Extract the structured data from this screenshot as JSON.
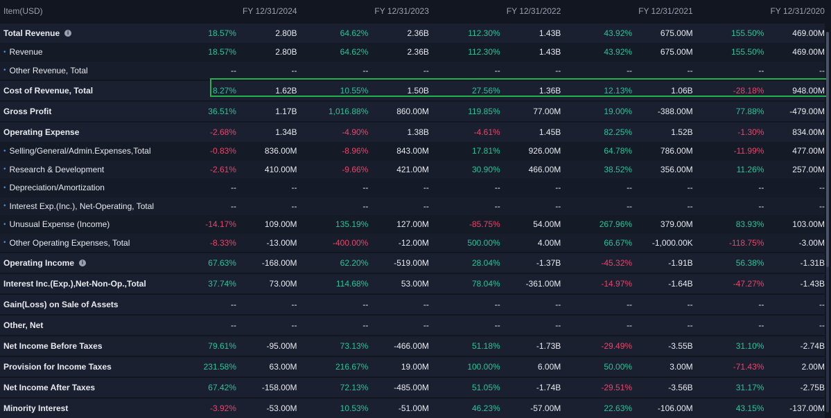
{
  "header": {
    "item_label": "Item(USD)",
    "years": [
      "FY 12/31/2024",
      "FY 12/31/2023",
      "FY 12/31/2022",
      "FY 12/31/2021",
      "FY 12/31/2020"
    ]
  },
  "rows": [
    {
      "name": "Total Revenue",
      "type": "main",
      "info": true,
      "cells": [
        [
          "18.57%",
          "pos"
        ],
        [
          "2.80B"
        ],
        [
          "64.62%",
          "pos"
        ],
        [
          "2.36B"
        ],
        [
          "112.30%",
          "pos"
        ],
        [
          "1.43B"
        ],
        [
          "43.92%",
          "pos"
        ],
        [
          "675.00M"
        ],
        [
          "155.50%",
          "pos"
        ],
        [
          "469.00M"
        ]
      ]
    },
    {
      "name": "Revenue",
      "type": "sub",
      "cells": [
        [
          "18.57%",
          "pos"
        ],
        [
          "2.80B"
        ],
        [
          "64.62%",
          "pos"
        ],
        [
          "2.36B"
        ],
        [
          "112.30%",
          "pos"
        ],
        [
          "1.43B"
        ],
        [
          "43.92%",
          "pos"
        ],
        [
          "675.00M"
        ],
        [
          "155.50%",
          "pos"
        ],
        [
          "469.00M"
        ]
      ]
    },
    {
      "name": "Other Revenue, Total",
      "type": "sub",
      "cells": [
        [
          "--"
        ],
        [
          "--"
        ],
        [
          "--"
        ],
        [
          "--"
        ],
        [
          "--"
        ],
        [
          "--"
        ],
        [
          "--"
        ],
        [
          "--"
        ],
        [
          "--"
        ],
        [
          "--"
        ]
      ]
    },
    {
      "name": "Cost of Revenue, Total",
      "type": "main",
      "highlight": true,
      "cells": [
        [
          "8.27%",
          "pos"
        ],
        [
          "1.62B"
        ],
        [
          "10.55%",
          "pos"
        ],
        [
          "1.50B"
        ],
        [
          "27.56%",
          "pos"
        ],
        [
          "1.36B"
        ],
        [
          "12.13%",
          "pos"
        ],
        [
          "1.06B"
        ],
        [
          "-28.18%",
          "neg"
        ],
        [
          "948.00M"
        ]
      ]
    },
    {
      "name": "Gross Profit",
      "type": "main",
      "cells": [
        [
          "36.51%",
          "pos"
        ],
        [
          "1.17B"
        ],
        [
          "1,016.88%",
          "pos"
        ],
        [
          "860.00M"
        ],
        [
          "119.85%",
          "pos"
        ],
        [
          "77.00M"
        ],
        [
          "19.00%",
          "pos"
        ],
        [
          "-388.00M"
        ],
        [
          "77.88%",
          "pos"
        ],
        [
          "-479.00M"
        ]
      ]
    },
    {
      "name": "Operating Expense",
      "type": "main",
      "cells": [
        [
          "-2.68%",
          "neg"
        ],
        [
          "1.34B"
        ],
        [
          "-4.90%",
          "neg"
        ],
        [
          "1.38B"
        ],
        [
          "-4.61%",
          "neg"
        ],
        [
          "1.45B"
        ],
        [
          "82.25%",
          "pos"
        ],
        [
          "1.52B"
        ],
        [
          "-1.30%",
          "neg"
        ],
        [
          "834.00M"
        ]
      ]
    },
    {
      "name": "Selling/General/Admin.Expenses,Total",
      "type": "sub",
      "cells": [
        [
          "-0.83%",
          "neg"
        ],
        [
          "836.00M"
        ],
        [
          "-8.96%",
          "neg"
        ],
        [
          "843.00M"
        ],
        [
          "17.81%",
          "pos"
        ],
        [
          "926.00M"
        ],
        [
          "64.78%",
          "pos"
        ],
        [
          "786.00M"
        ],
        [
          "-11.99%",
          "neg"
        ],
        [
          "477.00M"
        ]
      ]
    },
    {
      "name": "Research & Development",
      "type": "sub",
      "cells": [
        [
          "-2.61%",
          "neg"
        ],
        [
          "410.00M"
        ],
        [
          "-9.66%",
          "neg"
        ],
        [
          "421.00M"
        ],
        [
          "30.90%",
          "pos"
        ],
        [
          "466.00M"
        ],
        [
          "38.52%",
          "pos"
        ],
        [
          "356.00M"
        ],
        [
          "11.26%",
          "pos"
        ],
        [
          "257.00M"
        ]
      ]
    },
    {
      "name": "Depreciation/Amortization",
      "type": "sub",
      "cells": [
        [
          "--"
        ],
        [
          "--"
        ],
        [
          "--"
        ],
        [
          "--"
        ],
        [
          "--"
        ],
        [
          "--"
        ],
        [
          "--"
        ],
        [
          "--"
        ],
        [
          "--"
        ],
        [
          "--"
        ]
      ]
    },
    {
      "name": "Interest Exp.(Inc.), Net-Operating, Total",
      "type": "sub",
      "cells": [
        [
          "--"
        ],
        [
          "--"
        ],
        [
          "--"
        ],
        [
          "--"
        ],
        [
          "--"
        ],
        [
          "--"
        ],
        [
          "--"
        ],
        [
          "--"
        ],
        [
          "--"
        ],
        [
          "--"
        ]
      ]
    },
    {
      "name": "Unusual Expense (Income)",
      "type": "sub",
      "cells": [
        [
          "-14.17%",
          "neg"
        ],
        [
          "109.00M"
        ],
        [
          "135.19%",
          "pos"
        ],
        [
          "127.00M"
        ],
        [
          "-85.75%",
          "neg"
        ],
        [
          "54.00M"
        ],
        [
          "267.96%",
          "pos"
        ],
        [
          "379.00M"
        ],
        [
          "83.93%",
          "pos"
        ],
        [
          "103.00M"
        ]
      ]
    },
    {
      "name": "Other Operating Expenses, Total",
      "type": "sub",
      "cells": [
        [
          "-8.33%",
          "neg"
        ],
        [
          "-13.00M"
        ],
        [
          "-400.00%",
          "neg"
        ],
        [
          "-12.00M"
        ],
        [
          "500.00%",
          "pos"
        ],
        [
          "4.00M"
        ],
        [
          "66.67%",
          "pos"
        ],
        [
          "-1,000.00K"
        ],
        [
          "-118.75%",
          "neg"
        ],
        [
          "-3.00M"
        ]
      ]
    },
    {
      "name": "Operating Income",
      "type": "main",
      "info": true,
      "cells": [
        [
          "67.63%",
          "pos"
        ],
        [
          "-168.00M"
        ],
        [
          "62.20%",
          "pos"
        ],
        [
          "-519.00M"
        ],
        [
          "28.04%",
          "pos"
        ],
        [
          "-1.37B"
        ],
        [
          "-45.32%",
          "neg"
        ],
        [
          "-1.91B"
        ],
        [
          "56.38%",
          "pos"
        ],
        [
          "-1.31B"
        ]
      ]
    },
    {
      "name": "Interest Inc.(Exp.),Net-Non-Op.,Total",
      "type": "main",
      "cells": [
        [
          "37.74%",
          "pos"
        ],
        [
          "73.00M"
        ],
        [
          "114.68%",
          "pos"
        ],
        [
          "53.00M"
        ],
        [
          "78.04%",
          "pos"
        ],
        [
          "-361.00M"
        ],
        [
          "-14.97%",
          "neg"
        ],
        [
          "-1.64B"
        ],
        [
          "-47.27%",
          "neg"
        ],
        [
          "-1.43B"
        ]
      ]
    },
    {
      "name": "Gain(Loss) on Sale of Assets",
      "type": "main",
      "cells": [
        [
          "--"
        ],
        [
          "--"
        ],
        [
          "--"
        ],
        [
          "--"
        ],
        [
          "--"
        ],
        [
          "--"
        ],
        [
          "--"
        ],
        [
          "--"
        ],
        [
          "--"
        ],
        [
          "--"
        ]
      ]
    },
    {
      "name": "Other, Net",
      "type": "main",
      "cells": [
        [
          "--"
        ],
        [
          "--"
        ],
        [
          "--"
        ],
        [
          "--"
        ],
        [
          "--"
        ],
        [
          "--"
        ],
        [
          "--"
        ],
        [
          "--"
        ],
        [
          "--"
        ],
        [
          "--"
        ]
      ]
    },
    {
      "name": "Net Income Before Taxes",
      "type": "main",
      "cells": [
        [
          "79.61%",
          "pos"
        ],
        [
          "-95.00M"
        ],
        [
          "73.13%",
          "pos"
        ],
        [
          "-466.00M"
        ],
        [
          "51.18%",
          "pos"
        ],
        [
          "-1.73B"
        ],
        [
          "-29.49%",
          "neg"
        ],
        [
          "-3.55B"
        ],
        [
          "31.10%",
          "pos"
        ],
        [
          "-2.74B"
        ]
      ]
    },
    {
      "name": "Provision for Income Taxes",
      "type": "main",
      "cells": [
        [
          "231.58%",
          "pos"
        ],
        [
          "63.00M"
        ],
        [
          "216.67%",
          "pos"
        ],
        [
          "19.00M"
        ],
        [
          "100.00%",
          "pos"
        ],
        [
          "6.00M"
        ],
        [
          "50.00%",
          "pos"
        ],
        [
          "3.00M"
        ],
        [
          "-71.43%",
          "neg"
        ],
        [
          "2.00M"
        ]
      ]
    },
    {
      "name": "Net Income After Taxes",
      "type": "main",
      "cells": [
        [
          "67.42%",
          "pos"
        ],
        [
          "-158.00M"
        ],
        [
          "72.13%",
          "pos"
        ],
        [
          "-485.00M"
        ],
        [
          "51.05%",
          "pos"
        ],
        [
          "-1.74B"
        ],
        [
          "-29.51%",
          "neg"
        ],
        [
          "-3.56B"
        ],
        [
          "31.17%",
          "pos"
        ],
        [
          "-2.75B"
        ]
      ]
    },
    {
      "name": "Minority Interest",
      "type": "main",
      "cells": [
        [
          "-3.92%",
          "neg"
        ],
        [
          "-53.00M"
        ],
        [
          "10.53%",
          "pos"
        ],
        [
          "-51.00M"
        ],
        [
          "46.23%",
          "pos"
        ],
        [
          "-57.00M"
        ],
        [
          "22.63%",
          "pos"
        ],
        [
          "-106.00M"
        ],
        [
          "43.15%",
          "pos"
        ],
        [
          "-137.00M"
        ]
      ]
    }
  ],
  "colors": {
    "positive": "#2bc49a",
    "negative": "#e8466a",
    "highlight_border": "#24b24f",
    "bullet": "#3a8fe8"
  }
}
